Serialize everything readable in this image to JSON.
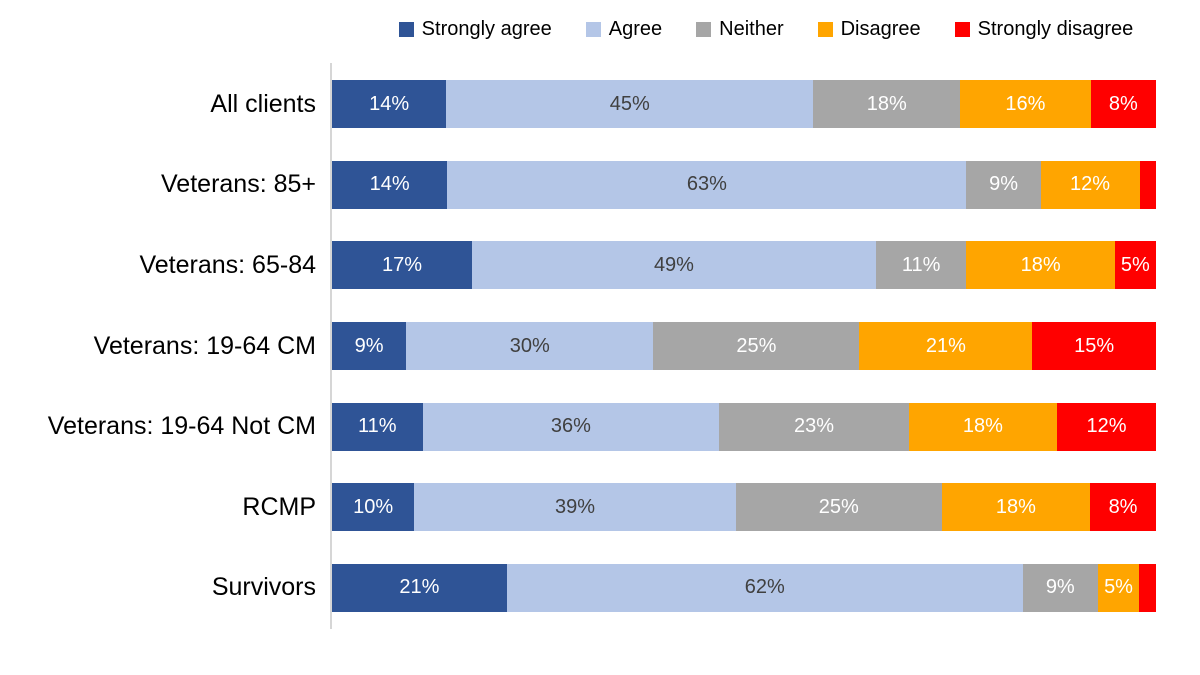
{
  "chart_data": {
    "type": "bar",
    "orientation": "horizontal",
    "stacked": true,
    "normalized_to_100": true,
    "unit": "%",
    "title": "",
    "xlabel": "",
    "ylabel": "",
    "legend_position": "top",
    "grid": false,
    "axis_line_color": "#d6d6d6",
    "background": "#ffffff",
    "categories": [
      "All clients",
      "Veterans: 85+",
      "Veterans: 65-84",
      "Veterans: 19-64 CM",
      "Veterans: 19-64 Not CM",
      "RCMP",
      "Survivors"
    ],
    "series": [
      {
        "name": "Strongly agree",
        "color": "#2f5496",
        "label_color": "#ffffff",
        "values": [
          14,
          14,
          17,
          9,
          11,
          10,
          21
        ],
        "labels": [
          "14%",
          "14%",
          "17%",
          "9%",
          "11%",
          "10%",
          "21%"
        ]
      },
      {
        "name": "Agree",
        "color": "#b4c6e7",
        "label_color": "#404040",
        "values": [
          45,
          63,
          49,
          30,
          36,
          39,
          62
        ],
        "labels": [
          "45%",
          "63%",
          "49%",
          "30%",
          "36%",
          "39%",
          "62%"
        ]
      },
      {
        "name": "Neither",
        "color": "#a6a6a6",
        "label_color": "#ffffff",
        "values": [
          18,
          9,
          11,
          25,
          23,
          25,
          9
        ],
        "labels": [
          "18%",
          "9%",
          "11%",
          "25%",
          "23%",
          "25%",
          "9%"
        ]
      },
      {
        "name": "Disagree",
        "color": "#ffa500",
        "label_color": "#ffffff",
        "values": [
          16,
          12,
          18,
          21,
          18,
          18,
          5
        ],
        "labels": [
          "16%",
          "12%",
          "18%",
          "21%",
          "18%",
          "18%",
          "5%"
        ]
      },
      {
        "name": "Strongly disagree",
        "color": "#ff0000",
        "label_color": "#ffffff",
        "values": [
          8,
          2,
          5,
          15,
          12,
          8,
          2
        ],
        "labels": [
          "8%",
          "",
          "5%",
          "15%",
          "12%",
          "8%",
          ""
        ]
      }
    ]
  }
}
